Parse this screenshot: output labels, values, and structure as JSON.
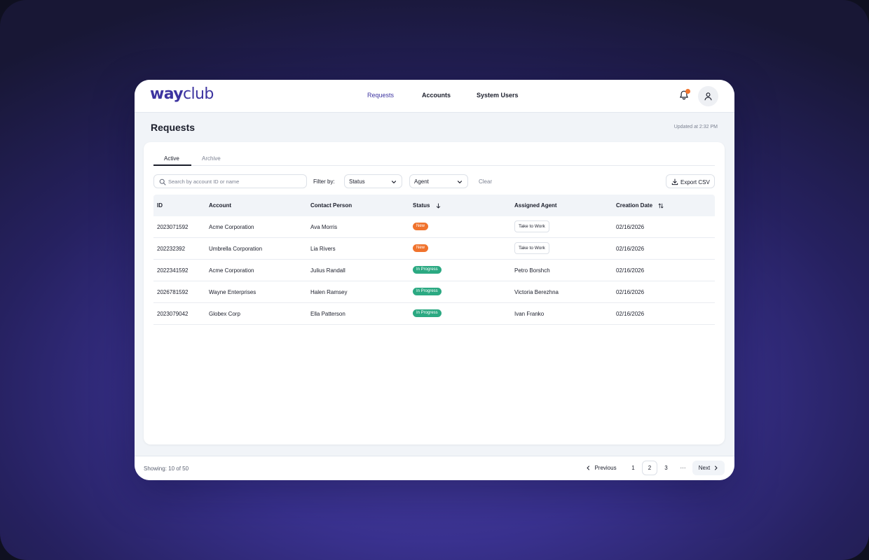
{
  "app": {
    "logo_way": "way",
    "logo_club": "club",
    "accent": "#3d34a0"
  },
  "nav": {
    "items": [
      {
        "label": "Requests",
        "active": true
      },
      {
        "label": "Accounts",
        "active": false
      },
      {
        "label": "System Users",
        "active": false
      }
    ]
  },
  "header": {
    "notification_icon": "bell-icon",
    "avatar_icon": "user-icon"
  },
  "page": {
    "title": "Requests",
    "updated": "Updated at 2:32 PM"
  },
  "tabs": [
    {
      "label": "Active",
      "active": true
    },
    {
      "label": "Archive",
      "active": false
    }
  ],
  "filters": {
    "search_placeholder": "Search by account ID or name",
    "search_value": "",
    "filter_label": "Filter by:",
    "status_select": "Status",
    "agent_select": "Agent",
    "clear_label": "Clear",
    "export_label": "Export CSV"
  },
  "table": {
    "columns": [
      "ID",
      "Account",
      "Contact Person",
      "Status",
      "Assigned Agent",
      "Creation Date"
    ],
    "rows": [
      {
        "id": "2023071592",
        "account": "Acme Corporation",
        "contact": "Ava Morris",
        "status": "New",
        "agent": "",
        "action": "Take to Work",
        "date": "02/16/2026"
      },
      {
        "id": "202232392",
        "account": "Umbrella Corporation",
        "contact": "Lia Rivers",
        "status": "New",
        "agent": "",
        "action": "Take to Work",
        "date": "02/16/2026"
      },
      {
        "id": "2022341592",
        "account": "Acme Corporation",
        "contact": "Julius Randall",
        "status": "In Progress",
        "agent": "Petro Borshch",
        "action": "",
        "date": "02/16/2026"
      },
      {
        "id": "2026781592",
        "account": "Wayne Enterprises",
        "contact": "Halen Ramsey",
        "status": "In Progress",
        "agent": "Victoria Berezhna",
        "action": "",
        "date": "02/16/2026"
      },
      {
        "id": "2023079042",
        "account": "Globex Corp",
        "contact": "Ella Patterson",
        "status": "In Progress",
        "agent": "Ivan Franko",
        "action": "",
        "date": "02/16/2026"
      }
    ],
    "status_colors": {
      "New": "#f0732d",
      "In Progress": "#2ba982"
    }
  },
  "footer": {
    "showing": "Showing: 10 of 50",
    "previous": "Previous",
    "pages": [
      "1",
      "2",
      "3"
    ],
    "current_page": "2",
    "ellipsis": "···",
    "next": "Next"
  }
}
